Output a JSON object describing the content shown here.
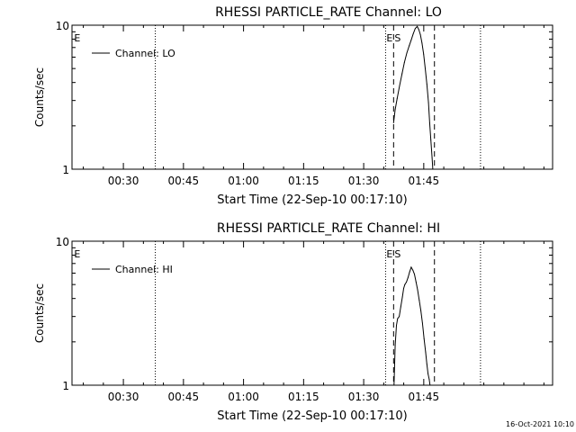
{
  "chart_data": [
    {
      "type": "line",
      "title": "RHESSI PARTICLE_RATE Channel: LO",
      "xlabel": "Start Time (22-Sep-10 00:17:10)",
      "ylabel": "Counts/sec",
      "yscale": "log",
      "ylim": [
        1,
        10
      ],
      "xlim_minutes": [
        0,
        120
      ],
      "xtick_labels": [
        "00:30",
        "00:45",
        "01:00",
        "01:15",
        "01:30",
        "01:45"
      ],
      "xtick_minutes": [
        12.83,
        27.83,
        42.83,
        57.83,
        72.83,
        87.83
      ],
      "ytick_labels": [
        "1",
        "10"
      ],
      "ytick_values": [
        1,
        10
      ],
      "legend": {
        "label": "Channel: LO",
        "position": "top-left"
      },
      "markers": [
        {
          "label": "E",
          "minute": 0.3,
          "style": "text"
        },
        {
          "label": "",
          "minute": 20.8,
          "style": "dotted"
        },
        {
          "label": "E",
          "minute": 78.3,
          "style": "dotted"
        },
        {
          "label": "S",
          "minute": 80.3,
          "style": "dashed"
        },
        {
          "label": "",
          "minute": 90.5,
          "style": "dashed"
        },
        {
          "label": "",
          "minute": 102.0,
          "style": "dotted"
        }
      ],
      "series": [
        {
          "name": "Channel: LO",
          "x": [
            80.3,
            80.7,
            81.2,
            81.8,
            82.4,
            83.0,
            83.6,
            84.2,
            84.7,
            85.2,
            85.7,
            86.2,
            86.6,
            87.0,
            87.4,
            87.8,
            88.2,
            88.6,
            89.0,
            89.3,
            89.6,
            89.9,
            90.1
          ],
          "values": [
            2.1,
            2.6,
            3.1,
            3.8,
            4.6,
            5.5,
            6.4,
            7.2,
            7.9,
            8.7,
            9.5,
            9.8,
            9.3,
            8.6,
            7.5,
            6.3,
            5.0,
            3.9,
            2.9,
            2.1,
            1.6,
            1.2,
            1.0
          ]
        }
      ]
    },
    {
      "type": "line",
      "title": "RHESSI PARTICLE_RATE Channel: HI",
      "xlabel": "Start Time (22-Sep-10 00:17:10)",
      "ylabel": "Counts/sec",
      "yscale": "log",
      "ylim": [
        1,
        10
      ],
      "xlim_minutes": [
        0,
        120
      ],
      "xtick_labels": [
        "00:30",
        "00:45",
        "01:00",
        "01:15",
        "01:30",
        "01:45"
      ],
      "xtick_minutes": [
        12.83,
        27.83,
        42.83,
        57.83,
        72.83,
        87.83
      ],
      "ytick_labels": [
        "1",
        "10"
      ],
      "ytick_values": [
        1,
        10
      ],
      "legend": {
        "label": "Channel: HI",
        "position": "top-left"
      },
      "markers": [
        {
          "label": "E",
          "minute": 0.3,
          "style": "text"
        },
        {
          "label": "",
          "minute": 20.8,
          "style": "dotted"
        },
        {
          "label": "E",
          "minute": 78.3,
          "style": "dotted"
        },
        {
          "label": "S",
          "minute": 80.3,
          "style": "dashed"
        },
        {
          "label": "",
          "minute": 90.5,
          "style": "dashed"
        },
        {
          "label": "",
          "minute": 102.0,
          "style": "dotted"
        }
      ],
      "series": [
        {
          "name": "Channel: HI",
          "x": [
            80.4,
            80.7,
            81.0,
            81.3,
            81.7,
            82.1,
            82.5,
            82.8,
            83.1,
            83.5,
            83.9,
            84.3,
            84.7,
            85.1,
            85.5,
            85.9,
            86.3,
            86.7,
            87.1,
            87.5,
            87.9,
            88.3,
            88.6,
            88.9,
            89.2,
            89.4
          ],
          "values": [
            1.0,
            1.9,
            2.6,
            2.9,
            3.0,
            3.5,
            4.1,
            4.7,
            5.0,
            5.2,
            5.6,
            6.1,
            6.6,
            6.3,
            5.9,
            5.2,
            4.6,
            3.9,
            3.3,
            2.7,
            2.1,
            1.7,
            1.4,
            1.2,
            1.1,
            1.0
          ]
        }
      ]
    }
  ],
  "footer": {
    "timestamp": "16-Oct-2021 10:10"
  }
}
